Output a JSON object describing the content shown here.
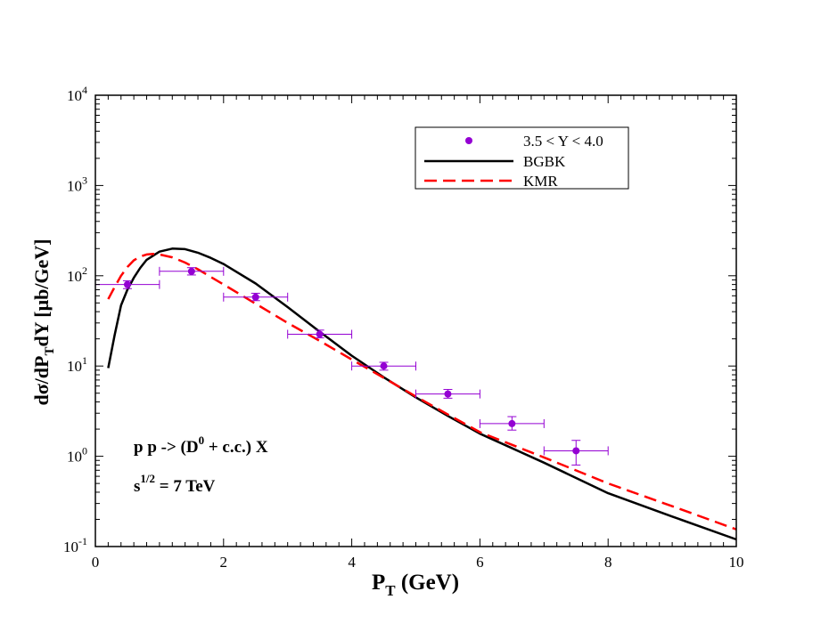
{
  "chart_data": {
    "type": "line",
    "xlabel": {
      "main": "P",
      "sub": "T",
      "rest": " (GeV)"
    },
    "ylabel": {
      "p1": "dσ/dP",
      "sub": "T",
      "p2": "dY [μb/GeV]"
    },
    "x_range": [
      0,
      10
    ],
    "y_range": [
      0.1,
      10000
    ],
    "y_scale": "log",
    "x_ticks": [
      0,
      2,
      4,
      6,
      8,
      10
    ],
    "x_tick_labels": [
      "0",
      "2",
      "4",
      "6",
      "8",
      "10"
    ],
    "y_ticks": [
      0.1,
      1,
      10,
      100,
      1000,
      10000
    ],
    "y_tick_labels": [
      {
        "base": "10",
        "exp": "-1"
      },
      {
        "base": "10",
        "exp": "0"
      },
      {
        "base": "10",
        "exp": "1"
      },
      {
        "base": "10",
        "exp": "2"
      },
      {
        "base": "10",
        "exp": "3"
      },
      {
        "base": "10",
        "exp": "4"
      }
    ],
    "legend_position": "top-right",
    "legend": [
      {
        "label": "3.5 < Y < 4.0",
        "kind": "marker",
        "color": "#9400d3"
      },
      {
        "label": "BGBK",
        "kind": "solid",
        "color": "#000000"
      },
      {
        "label": "KMR",
        "kind": "dashed",
        "color": "#ff0000"
      }
    ],
    "annotations": {
      "process": {
        "a": "p p -> (D",
        "sup": "0",
        "b": " + c.c.) X"
      },
      "energy": {
        "a": "s",
        "sup": "1/2",
        "b": " = 7 TeV"
      }
    },
    "data_points": {
      "name": "3.5 < Y < 4.0",
      "color": "#9400d3",
      "points": [
        {
          "x": 0.5,
          "xerr": 0.5,
          "y": 80,
          "y_low": 72,
          "y_high": 88
        },
        {
          "x": 1.5,
          "xerr": 0.5,
          "y": 112,
          "y_low": 102,
          "y_high": 123
        },
        {
          "x": 2.5,
          "xerr": 0.5,
          "y": 58,
          "y_low": 53,
          "y_high": 64
        },
        {
          "x": 3.5,
          "xerr": 0.5,
          "y": 22.5,
          "y_low": 20.5,
          "y_high": 25
        },
        {
          "x": 4.5,
          "xerr": 0.5,
          "y": 10,
          "y_low": 9,
          "y_high": 11
        },
        {
          "x": 5.5,
          "xerr": 0.5,
          "y": 4.9,
          "y_low": 4.4,
          "y_high": 5.5
        },
        {
          "x": 6.5,
          "xerr": 0.5,
          "y": 2.3,
          "y_low": 1.95,
          "y_high": 2.75
        },
        {
          "x": 7.5,
          "xerr": 0.5,
          "y": 1.15,
          "y_low": 0.8,
          "y_high": 1.5
        }
      ]
    },
    "series": [
      {
        "name": "BGBK",
        "color": "#000000",
        "style": "solid",
        "x": [
          0.2,
          0.3,
          0.4,
          0.5,
          0.6,
          0.7,
          0.8,
          1.0,
          1.2,
          1.4,
          1.6,
          1.8,
          2.0,
          2.5,
          3.0,
          3.5,
          4.0,
          4.5,
          5.0,
          5.5,
          6.0,
          7.0,
          8.0,
          9.0,
          10.0
        ],
        "y": [
          9.5,
          22,
          47,
          70,
          95,
          122,
          150,
          185,
          200,
          197,
          180,
          158,
          135,
          82,
          45,
          24,
          13,
          7.5,
          4.5,
          2.8,
          1.78,
          0.85,
          0.39,
          0.215,
          0.12
        ]
      },
      {
        "name": "KMR",
        "color": "#ff0000",
        "style": "dashed",
        "x": [
          0.2,
          0.3,
          0.4,
          0.5,
          0.6,
          0.7,
          0.8,
          0.9,
          1.0,
          1.2,
          1.4,
          1.6,
          1.8,
          2.0,
          2.5,
          3.0,
          3.5,
          4.0,
          4.5,
          5.0,
          5.5,
          6.0,
          7.0,
          8.0,
          9.0,
          10.0
        ],
        "y": [
          55,
          75,
          100,
          125,
          148,
          163,
          172,
          175,
          172,
          160,
          140,
          118,
          97,
          80,
          49,
          30,
          19,
          11.8,
          7.4,
          4.6,
          2.9,
          1.85,
          0.97,
          0.5,
          0.28,
          0.155
        ]
      }
    ]
  }
}
